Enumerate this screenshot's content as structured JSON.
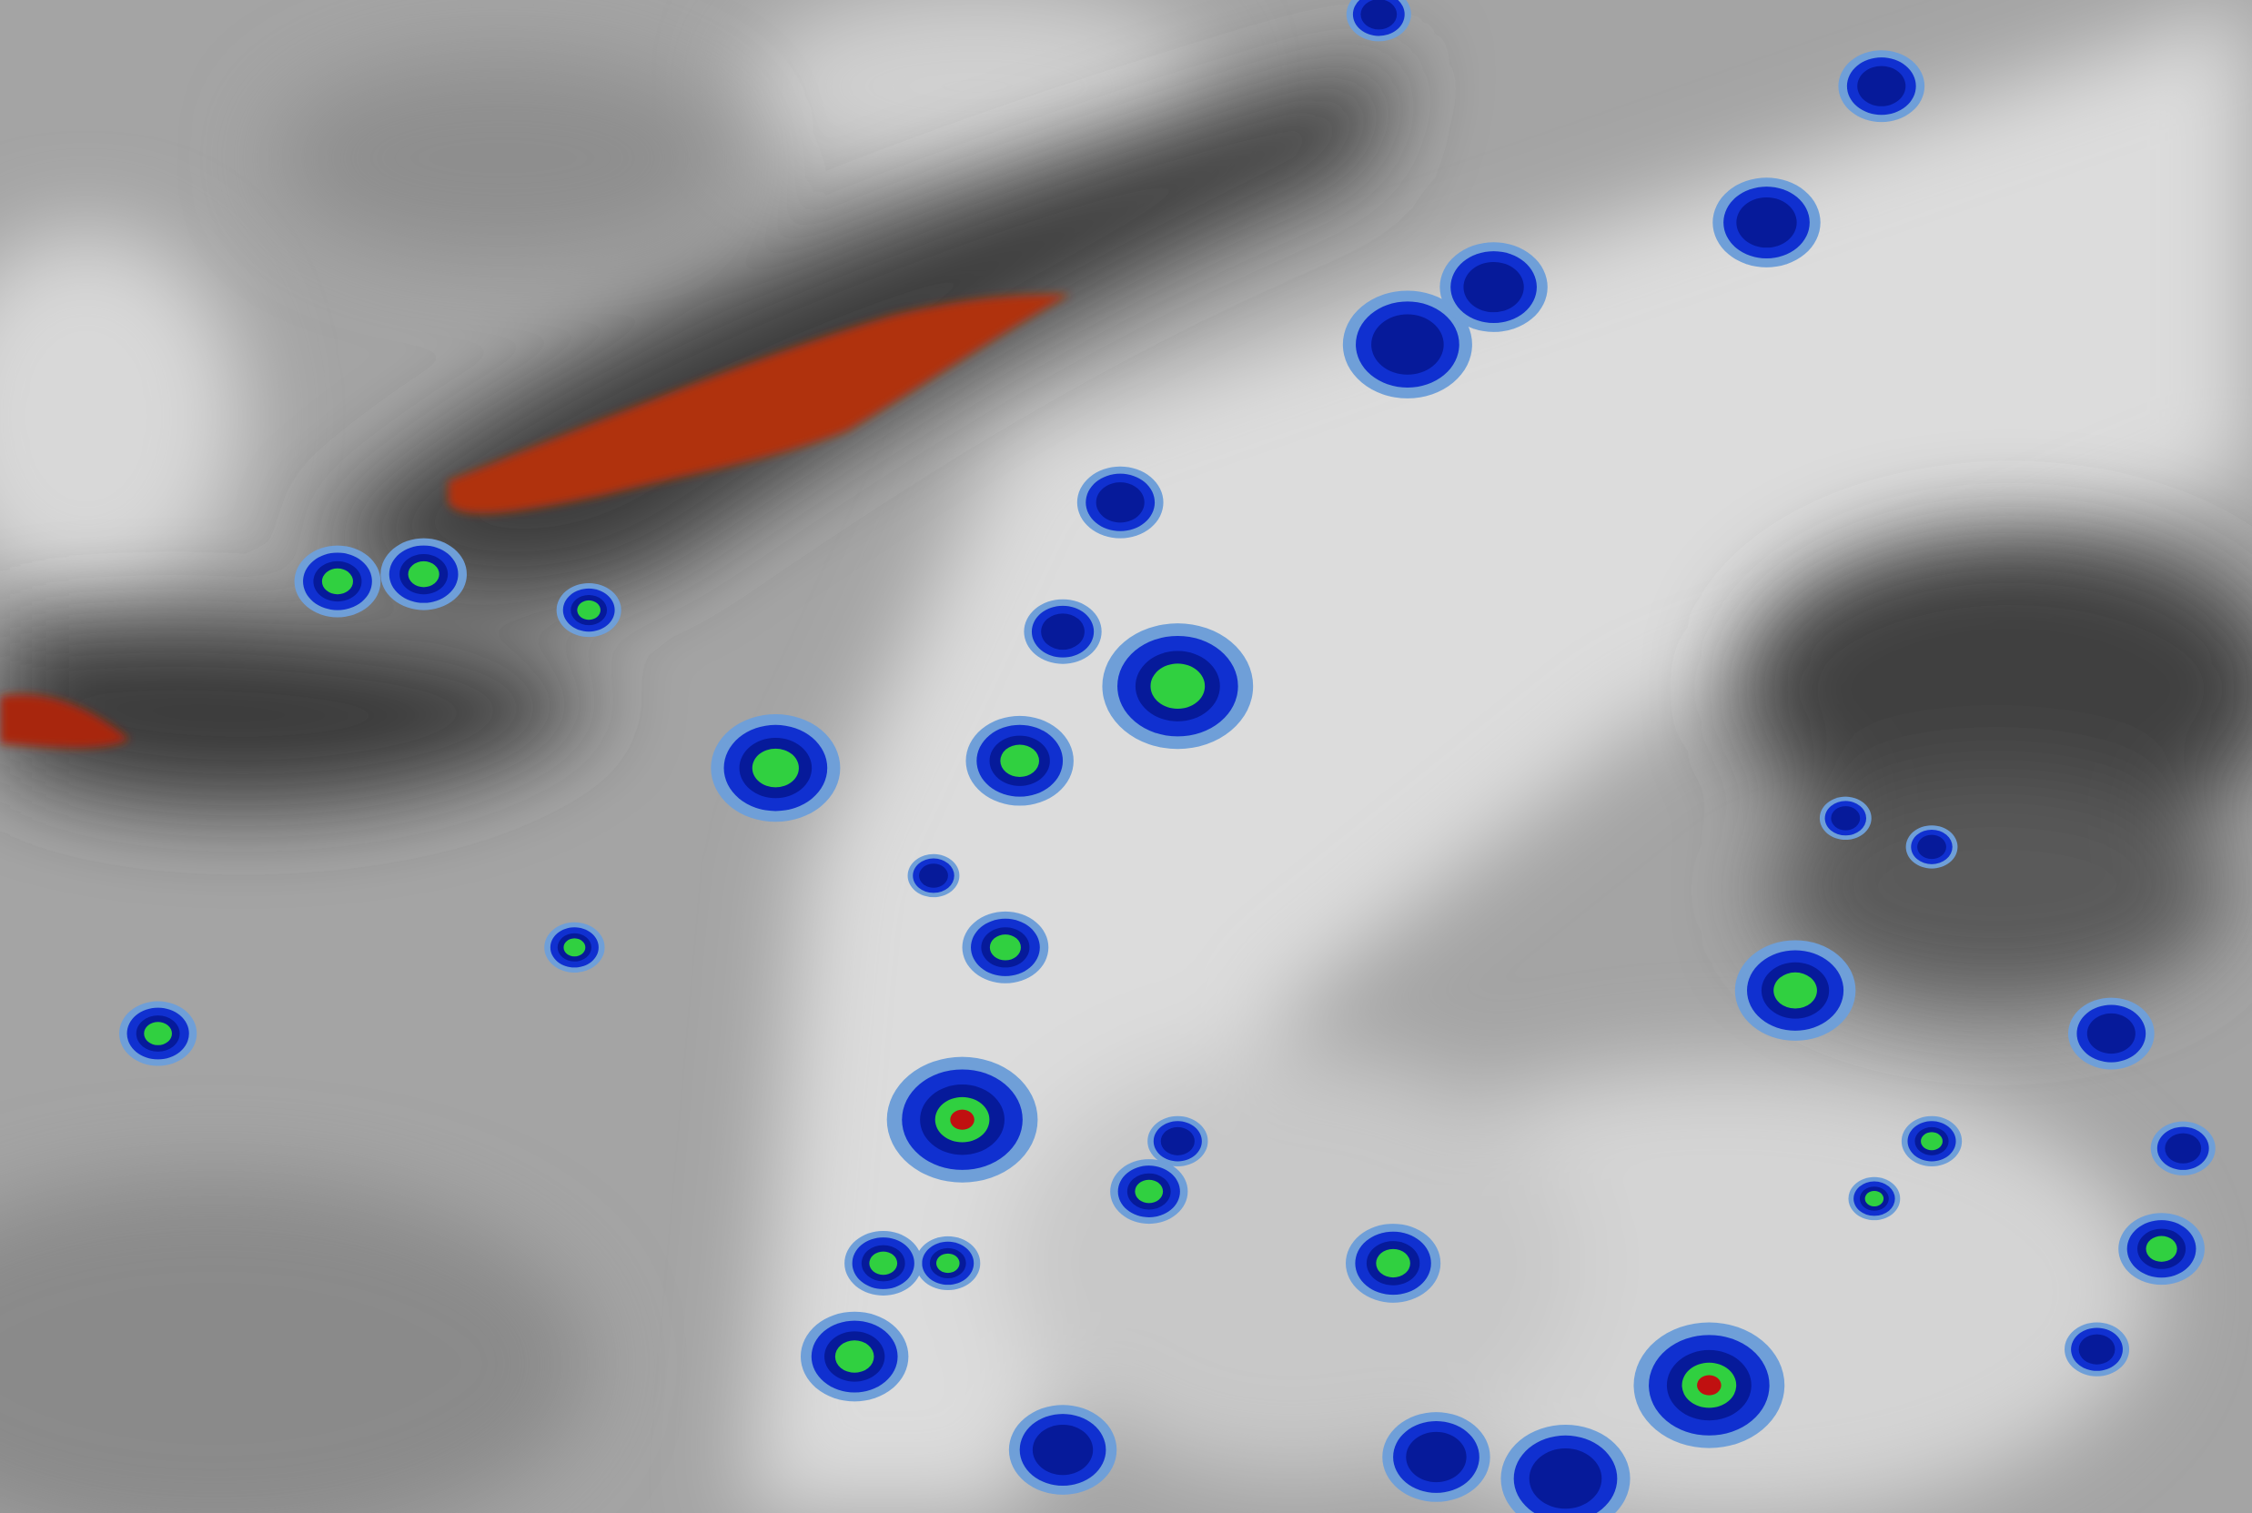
{
  "image": {
    "kind": "satellite water-vapor / infrared enhanced imagery",
    "palette": {
      "background_gray": "#a8a8a8",
      "light_cloud": "#e6e6e6",
      "dark_dry_air": "#3c3c3c",
      "warm_dry_red": "#b02a08",
      "light_blue": "#6f9fd8",
      "blue": "#1030d0",
      "dark_blue": "#061a9a",
      "green": "#30d040",
      "red_core": "#c01010"
    }
  }
}
